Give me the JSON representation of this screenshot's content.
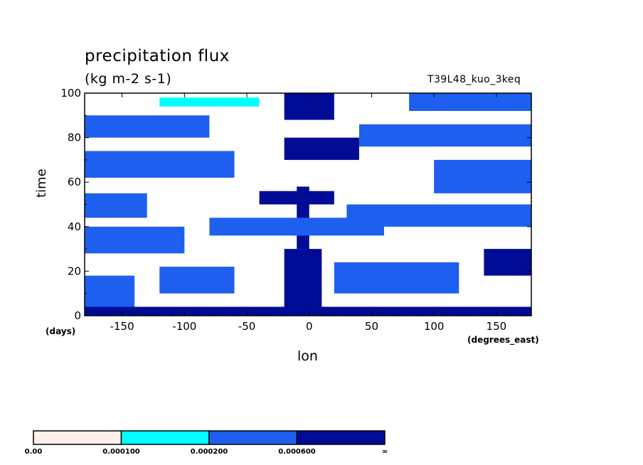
{
  "chart_data": {
    "type": "heatmap",
    "title": "precipitation flux",
    "units": "(kg m-2 s-1)",
    "run_name": "T39L48_kuo_3keq",
    "xlabel": "lon",
    "x_unit": "(degrees_east)",
    "ylabel": "time",
    "y_unit": "(days)",
    "xlim": [
      -180,
      178
    ],
    "ylim": [
      0,
      100
    ],
    "x_ticks": [
      -150,
      -100,
      -50,
      0,
      50,
      100,
      150
    ],
    "y_ticks": [
      0,
      20,
      40,
      60,
      80,
      100
    ],
    "colorbar": {
      "levels": [
        "0.00",
        "0.000100",
        "0.000200",
        "0.000600",
        "∞"
      ],
      "colors": [
        "#fff0ec",
        "#00ffff",
        "#1e5ff0",
        "#000c96"
      ]
    },
    "patches": [
      {
        "level": 3,
        "lon0": -180,
        "lon1": 178,
        "t0": 0,
        "t1": 4
      },
      {
        "level": 2,
        "lon0": -180,
        "lon1": -140,
        "t0": 4,
        "t1": 18
      },
      {
        "level": 3,
        "lon0": -20,
        "lon1": 10,
        "t0": 0,
        "t1": 30
      },
      {
        "level": 2,
        "lon0": -120,
        "lon1": -60,
        "t0": 10,
        "t1": 22
      },
      {
        "level": 2,
        "lon0": 20,
        "lon1": 120,
        "t0": 10,
        "t1": 24
      },
      {
        "level": 3,
        "lon0": 140,
        "lon1": 178,
        "t0": 18,
        "t1": 30
      },
      {
        "level": 2,
        "lon0": -180,
        "lon1": -100,
        "t0": 28,
        "t1": 40
      },
      {
        "level": 3,
        "lon0": -10,
        "lon1": 0,
        "t0": 30,
        "t1": 58
      },
      {
        "level": 2,
        "lon0": -80,
        "lon1": 60,
        "t0": 36,
        "t1": 44
      },
      {
        "level": 2,
        "lon0": 30,
        "lon1": 178,
        "t0": 40,
        "t1": 50
      },
      {
        "level": 2,
        "lon0": -180,
        "lon1": -130,
        "t0": 44,
        "t1": 55
      },
      {
        "level": 3,
        "lon0": -40,
        "lon1": 20,
        "t0": 50,
        "t1": 56
      },
      {
        "level": 2,
        "lon0": 100,
        "lon1": 178,
        "t0": 55,
        "t1": 70
      },
      {
        "level": 2,
        "lon0": -180,
        "lon1": -60,
        "t0": 62,
        "t1": 74
      },
      {
        "level": 3,
        "lon0": -20,
        "lon1": 40,
        "t0": 70,
        "t1": 80
      },
      {
        "level": 2,
        "lon0": 40,
        "lon1": 178,
        "t0": 76,
        "t1": 86
      },
      {
        "level": 2,
        "lon0": -180,
        "lon1": -80,
        "t0": 80,
        "t1": 90
      },
      {
        "level": 3,
        "lon0": -20,
        "lon1": 20,
        "t0": 88,
        "t1": 100
      },
      {
        "level": 2,
        "lon0": 80,
        "lon1": 178,
        "t0": 92,
        "t1": 100
      },
      {
        "level": 1,
        "lon0": -120,
        "lon1": -40,
        "t0": 94,
        "t1": 98
      }
    ]
  }
}
